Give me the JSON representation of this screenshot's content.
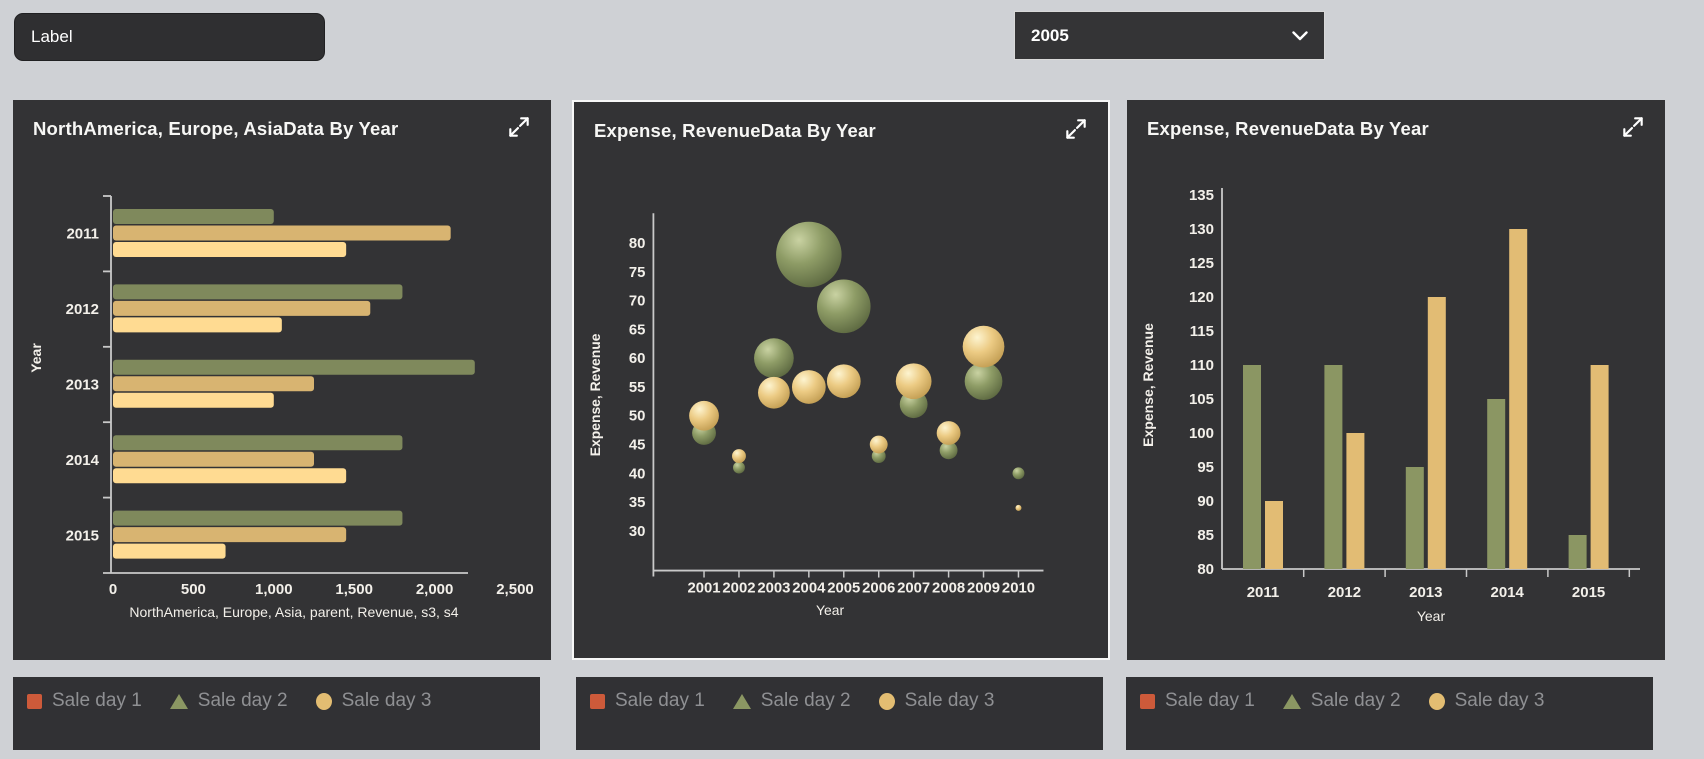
{
  "toolbar": {
    "label_input": {
      "value": "Label"
    },
    "year_select": {
      "value": "2005"
    }
  },
  "panels": [
    {
      "title": "NorthAmerica, Europe, AsiaData By Year"
    },
    {
      "title": "Expense, RevenueData By Year"
    },
    {
      "title": "Expense, RevenueData By Year"
    }
  ],
  "legend": {
    "items": [
      {
        "label": "Sale day 1",
        "shape": "square",
        "color": "#cd5a3a"
      },
      {
        "label": "Sale day 2",
        "shape": "triangle",
        "color": "#8b9763"
      },
      {
        "label": "Sale day 3",
        "shape": "circle",
        "color": "#e3bd72"
      }
    ]
  },
  "chart_data": [
    {
      "type": "bar",
      "orientation": "horizontal",
      "title": "NorthAmerica, Europe, AsiaData By Year",
      "categories": [
        "2011",
        "2012",
        "2013",
        "2014",
        "2015"
      ],
      "series": [
        {
          "color": "#7f895c",
          "values": [
            1000,
            1800,
            2250,
            1800,
            1800
          ]
        },
        {
          "color": "#d8b471",
          "values": [
            2100,
            1600,
            1250,
            1250,
            1450
          ]
        },
        {
          "color": "#ffdb92",
          "values": [
            1450,
            1050,
            1000,
            1450,
            700
          ]
        }
      ],
      "xlabel": "NorthAmerica, Europe, Asia, parent, Revenue, s3, s4",
      "ylabel": "Year",
      "xlim": [
        0,
        2500
      ],
      "xticks": [
        0,
        500,
        1000,
        1500,
        2000,
        2500
      ],
      "xtick_labels": [
        "0",
        "500",
        "1,000",
        "1,500",
        "2,000",
        "2,500"
      ]
    },
    {
      "type": "scatter",
      "variant": "bubble",
      "title": "Expense, RevenueData By Year",
      "xlabel": "Year",
      "ylabel": "Expense, Revenue",
      "x_years": [
        2001,
        2002,
        2003,
        2004,
        2005,
        2006,
        2007,
        2008,
        2009,
        2010
      ],
      "ylim": [
        30,
        80
      ],
      "yticks": [
        80,
        75,
        70,
        65,
        60,
        55,
        50,
        45,
        40,
        35,
        30
      ],
      "series": [
        {
          "color": "#8e9c66",
          "points": [
            {
              "x": 2001,
              "y": 47,
              "r": 12
            },
            {
              "x": 2002,
              "y": 41,
              "r": 6
            },
            {
              "x": 2003,
              "y": 60,
              "r": 20
            },
            {
              "x": 2004,
              "y": 78,
              "r": 33
            },
            {
              "x": 2005,
              "y": 69,
              "r": 27
            },
            {
              "x": 2006,
              "y": 43,
              "r": 7
            },
            {
              "x": 2007,
              "y": 52,
              "r": 14
            },
            {
              "x": 2008,
              "y": 44,
              "r": 9
            },
            {
              "x": 2009,
              "y": 56,
              "r": 19
            },
            {
              "x": 2010,
              "y": 40,
              "r": 6
            }
          ]
        },
        {
          "color": "#ecca82",
          "points": [
            {
              "x": 2001,
              "y": 50,
              "r": 15
            },
            {
              "x": 2002,
              "y": 43,
              "r": 7
            },
            {
              "x": 2003,
              "y": 54,
              "r": 16
            },
            {
              "x": 2004,
              "y": 55,
              "r": 17
            },
            {
              "x": 2005,
              "y": 56,
              "r": 17
            },
            {
              "x": 2006,
              "y": 45,
              "r": 9
            },
            {
              "x": 2007,
              "y": 56,
              "r": 18
            },
            {
              "x": 2008,
              "y": 47,
              "r": 12
            },
            {
              "x": 2009,
              "y": 62,
              "r": 21
            },
            {
              "x": 2010,
              "y": 34,
              "r": 3
            }
          ]
        }
      ]
    },
    {
      "type": "bar",
      "orientation": "vertical",
      "title": "Expense, RevenueData By Year",
      "categories": [
        "2011",
        "2012",
        "2013",
        "2014",
        "2015"
      ],
      "series": [
        {
          "color": "#8b9663",
          "values": [
            110,
            110,
            95,
            105,
            85
          ]
        },
        {
          "color": "#e2bc74",
          "values": [
            90,
            100,
            120,
            130,
            110
          ]
        }
      ],
      "xlabel": "Year",
      "ylabel": "Expense, Revenue",
      "ylim": [
        80,
        135
      ],
      "yticks": [
        135,
        130,
        125,
        120,
        115,
        110,
        105,
        100,
        95,
        90,
        85,
        80
      ]
    }
  ]
}
